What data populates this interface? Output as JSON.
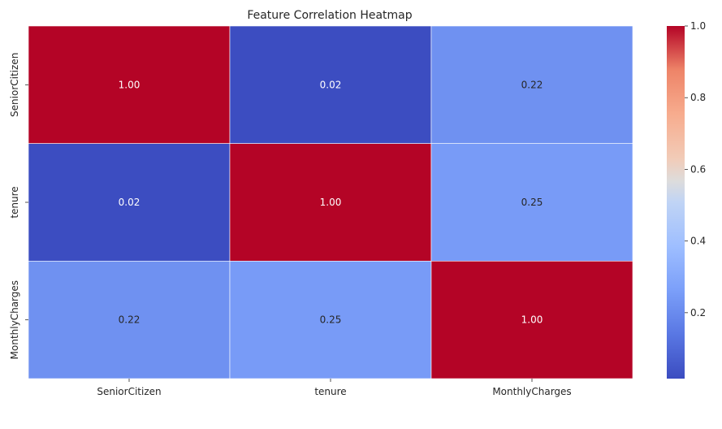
{
  "chart_data": {
    "type": "heatmap",
    "title": "Feature Correlation Heatmap",
    "row_labels": [
      "SeniorCitizen",
      "tenure",
      "MonthlyCharges"
    ],
    "col_labels": [
      "SeniorCitizen",
      "tenure",
      "MonthlyCharges"
    ],
    "values": [
      [
        1.0,
        0.02,
        0.22
      ],
      [
        0.02,
        1.0,
        0.25
      ],
      [
        0.22,
        0.25,
        1.0
      ]
    ],
    "annotations": [
      [
        "1.00",
        "0.02",
        "0.22"
      ],
      [
        "0.02",
        "1.00",
        "0.25"
      ],
      [
        "0.22",
        "0.25",
        "1.00"
      ]
    ],
    "colormap": "coolwarm",
    "colorbar": {
      "vmin": 0.016,
      "vmax": 1.0,
      "ticks": [
        0.2,
        0.4,
        0.6,
        0.8,
        1.0
      ],
      "tick_labels": [
        "0.2",
        "0.4",
        "0.6",
        "0.8",
        "1.0"
      ]
    },
    "xlabel": "",
    "ylabel": ""
  }
}
